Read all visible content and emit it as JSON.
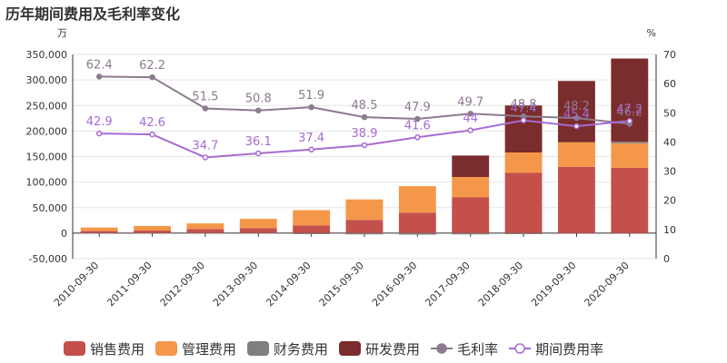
{
  "title": "历年期间费用及毛利率变化",
  "chart_data": {
    "type": "bar",
    "stacked": true,
    "categories": [
      "2010-09-30",
      "2011-09-30",
      "2012-09-30",
      "2013-09-30",
      "2014-09-30",
      "2015-09-30",
      "2016-09-30",
      "2017-09-30",
      "2018-09-30",
      "2019-09-30",
      "2020-09-30"
    ],
    "y_left": {
      "unit": "万",
      "ylim": [
        -50000,
        350000
      ],
      "ticks": [
        "-50,000",
        "0",
        "50,000",
        "100,000",
        "150,000",
        "200,000",
        "250,000",
        "300,000",
        "350,000"
      ]
    },
    "y_right": {
      "unit": "%",
      "ylim": [
        0,
        70
      ],
      "ticks": [
        "0",
        "10",
        "20",
        "30",
        "40",
        "50",
        "60",
        "70"
      ]
    },
    "series": [
      {
        "name": "销售费用",
        "kind": "bar",
        "color": "#c4504c",
        "values": [
          4000,
          5000,
          8000,
          10000,
          15000,
          26000,
          40000,
          70000,
          118000,
          130000,
          128000
        ]
      },
      {
        "name": "管理费用",
        "kind": "bar",
        "color": "#f5974a",
        "values": [
          7000,
          9000,
          11000,
          18000,
          30000,
          40000,
          52000,
          40000,
          40000,
          48000,
          48000
        ]
      },
      {
        "name": "财务费用",
        "kind": "bar",
        "color": "#7f7f7f",
        "values": [
          -500,
          -500,
          -500,
          -1000,
          -2000,
          -2500,
          -3000,
          -2500,
          -2000,
          0,
          3000
        ]
      },
      {
        "name": "研发费用",
        "kind": "bar",
        "color": "#7b2c2c",
        "values": [
          0,
          0,
          0,
          0,
          0,
          0,
          0,
          42000,
          92000,
          120000,
          163000
        ]
      },
      {
        "name": "毛利率",
        "kind": "line",
        "axis": "right",
        "color": "#8c7a8e",
        "values": [
          62.4,
          62.2,
          51.5,
          50.8,
          51.9,
          48.5,
          47.9,
          49.7,
          48.8,
          48.2,
          46.2
        ],
        "labels": [
          "62.4",
          "62.2",
          "51.5",
          "50.8",
          "51.9",
          "48.5",
          "47.9",
          "49.7",
          "48.8",
          "48.2",
          "46.2"
        ]
      },
      {
        "name": "期间费用率",
        "kind": "line",
        "axis": "right",
        "color": "#a66bd4",
        "values": [
          42.9,
          42.6,
          34.7,
          36.1,
          37.4,
          38.9,
          41.6,
          44,
          47.4,
          45.4,
          47.2
        ],
        "labels": [
          "42.9",
          "42.6",
          "34.7",
          "36.1",
          "37.4",
          "38.9",
          "41.6",
          "44",
          "47.4",
          "45.4",
          "47.2"
        ]
      }
    ],
    "legend": "bottom",
    "grid": true
  }
}
